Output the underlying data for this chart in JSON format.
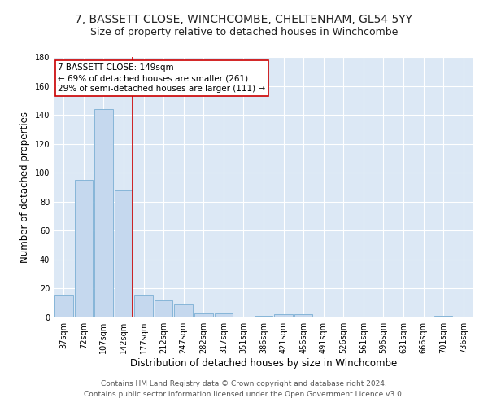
{
  "title": "7, BASSETT CLOSE, WINCHCOMBE, CHELTENHAM, GL54 5YY",
  "subtitle": "Size of property relative to detached houses in Winchcombe",
  "xlabel": "Distribution of detached houses by size in Winchcombe",
  "ylabel": "Number of detached properties",
  "footer_line1": "Contains HM Land Registry data © Crown copyright and database right 2024.",
  "footer_line2": "Contains public sector information licensed under the Open Government Licence v3.0.",
  "bin_labels": [
    "37sqm",
    "72sqm",
    "107sqm",
    "142sqm",
    "177sqm",
    "212sqm",
    "247sqm",
    "282sqm",
    "317sqm",
    "351sqm",
    "386sqm",
    "421sqm",
    "456sqm",
    "491sqm",
    "526sqm",
    "561sqm",
    "596sqm",
    "631sqm",
    "666sqm",
    "701sqm",
    "736sqm"
  ],
  "bar_values": [
    15,
    95,
    144,
    88,
    15,
    12,
    9,
    3,
    3,
    0,
    1,
    2,
    2,
    0,
    0,
    0,
    0,
    0,
    0,
    1,
    0
  ],
  "bar_color": "#c5d8ee",
  "bar_edge_color": "#7aafd4",
  "red_line_color": "#cc0000",
  "annotation_text": "7 BASSETT CLOSE: 149sqm\n← 69% of detached houses are smaller (261)\n29% of semi-detached houses are larger (111) →",
  "annotation_box_facecolor": "#ffffff",
  "annotation_box_edgecolor": "#cc0000",
  "ylim": [
    0,
    180
  ],
  "yticks": [
    0,
    20,
    40,
    60,
    80,
    100,
    120,
    140,
    160,
    180
  ],
  "bg_color": "#dce8f5",
  "title_fontsize": 10,
  "subtitle_fontsize": 9,
  "axis_label_fontsize": 8.5,
  "tick_fontsize": 7,
  "annotation_fontsize": 7.5,
  "footer_fontsize": 6.5
}
